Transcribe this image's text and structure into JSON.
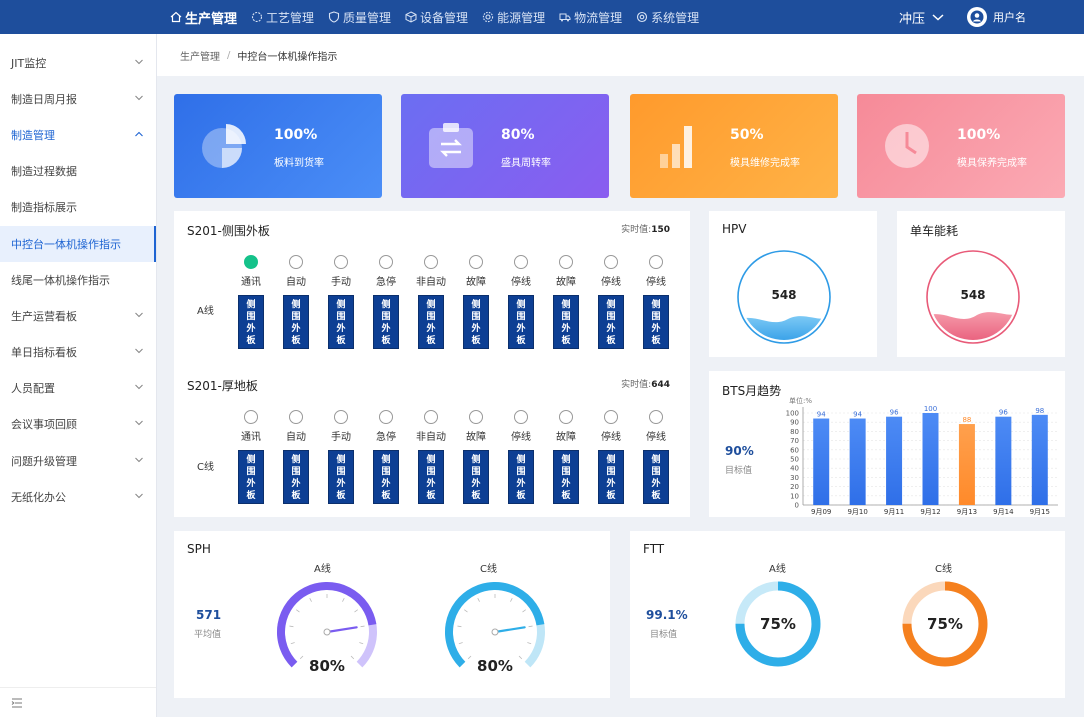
{
  "nav": {
    "items": [
      {
        "label": "生产管理",
        "active": true
      },
      {
        "label": "工艺管理"
      },
      {
        "label": "质量管理"
      },
      {
        "label": "设备管理"
      },
      {
        "label": "能源管理"
      },
      {
        "label": "物流管理"
      },
      {
        "label": "系统管理"
      }
    ],
    "plant": "冲压",
    "user": "用户名"
  },
  "sidebar": {
    "items": [
      {
        "label": "JIT监控",
        "chevron": "down"
      },
      {
        "label": "制造日周月报",
        "chevron": "down"
      },
      {
        "label": "制造管理",
        "chevron": "up",
        "open": true
      },
      {
        "label": "制造过程数据"
      },
      {
        "label": "制造指标展示"
      },
      {
        "label": "中控台一体机操作指示",
        "active": true
      },
      {
        "label": "线尾一体机操作指示"
      },
      {
        "label": "生产运营看板",
        "chevron": "down"
      },
      {
        "label": "单日指标看板",
        "chevron": "down"
      },
      {
        "label": "人员配置",
        "chevron": "down"
      },
      {
        "label": "会议事项回顾",
        "chevron": "down"
      },
      {
        "label": "问题升级管理",
        "chevron": "down"
      },
      {
        "label": "无纸化办公",
        "chevron": "down"
      }
    ]
  },
  "breadcrumb": {
    "root": "生产管理",
    "sep": "/",
    "current": "中控台一体机操作指示"
  },
  "kpis": [
    {
      "value": "100%",
      "label": "板料到货率",
      "icon": "pie-chart-icon",
      "from": "#2f6fe8",
      "to": "#4b8ef7"
    },
    {
      "value": "80%",
      "label": "盛具周转率",
      "icon": "clipboard-transfer-icon",
      "from": "#6b6ef2",
      "to": "#8a5df0"
    },
    {
      "value": "50%",
      "label": "模具维修完成率",
      "icon": "bar-chart-icon",
      "from": "#ff9a2c",
      "to": "#ffb347"
    },
    {
      "value": "100%",
      "label": "模具保养完成率",
      "icon": "clock-icon",
      "from": "#f68a98",
      "to": "#fbaab4"
    }
  ],
  "lineA": {
    "title": "S201-侧围外板",
    "realtime_label": "实时值:",
    "realtime_value": "150",
    "line_label": "A线",
    "board_text": "侧围外板",
    "statuses": [
      "通讯",
      "自动",
      "手动",
      "急停",
      "非自动",
      "故障",
      "停线",
      "故障",
      "停线",
      "停线"
    ],
    "active_index": 0
  },
  "lineC": {
    "title": "S201-厚地板",
    "realtime_label": "实时值:",
    "realtime_value": "644",
    "line_label": "C线",
    "board_text": "侧围外板",
    "statuses": [
      "通讯",
      "自动",
      "手动",
      "急停",
      "非自动",
      "故障",
      "停线",
      "故障",
      "停线",
      "停线"
    ],
    "active_index": -1
  },
  "hpv": {
    "title": "HPV",
    "value": "548",
    "fill_level": 0.25,
    "color": "#2e9be6"
  },
  "energy": {
    "title": "单车能耗",
    "value": "548",
    "fill_level": 0.3,
    "color": "#e85a78"
  },
  "bts": {
    "title": "BTS月趋势",
    "target_value": "90%",
    "target_label": "目标值"
  },
  "chart_data": {
    "type": "bar",
    "unit_label": "单位:%",
    "categories": [
      "9月09",
      "9月10",
      "9月11",
      "9月12",
      "9月13",
      "9月14",
      "9月15"
    ],
    "values": [
      94,
      94,
      96,
      100,
      88,
      96,
      98
    ],
    "highlight_index": 4,
    "ylim": [
      0,
      100
    ],
    "yticks": [
      0,
      10,
      20,
      30,
      40,
      50,
      60,
      70,
      80,
      90,
      100
    ],
    "colors": {
      "normal": "#2f6fe8",
      "highlight": "#ff8a2a"
    }
  },
  "sph": {
    "title": "SPH",
    "avg_value": "571",
    "avg_label": "平均值",
    "gauges": [
      {
        "label": "A线",
        "value": "80%",
        "level": 0.8,
        "color": "#7a5cf0",
        "light": "#cfc3fb"
      },
      {
        "label": "C线",
        "value": "80%",
        "level": 0.8,
        "color": "#2eaee8",
        "light": "#bfe6f7"
      }
    ]
  },
  "ftt": {
    "title": "FTT",
    "target_value": "99.1%",
    "target_label": "目标值",
    "rings": [
      {
        "label": "A线",
        "value": "75%",
        "level": 0.75,
        "color": "#2eaee8",
        "light": "#c6e9f8"
      },
      {
        "label": "C线",
        "value": "75%",
        "level": 0.75,
        "color": "#f5801e",
        "light": "#fbd8bb"
      }
    ]
  }
}
